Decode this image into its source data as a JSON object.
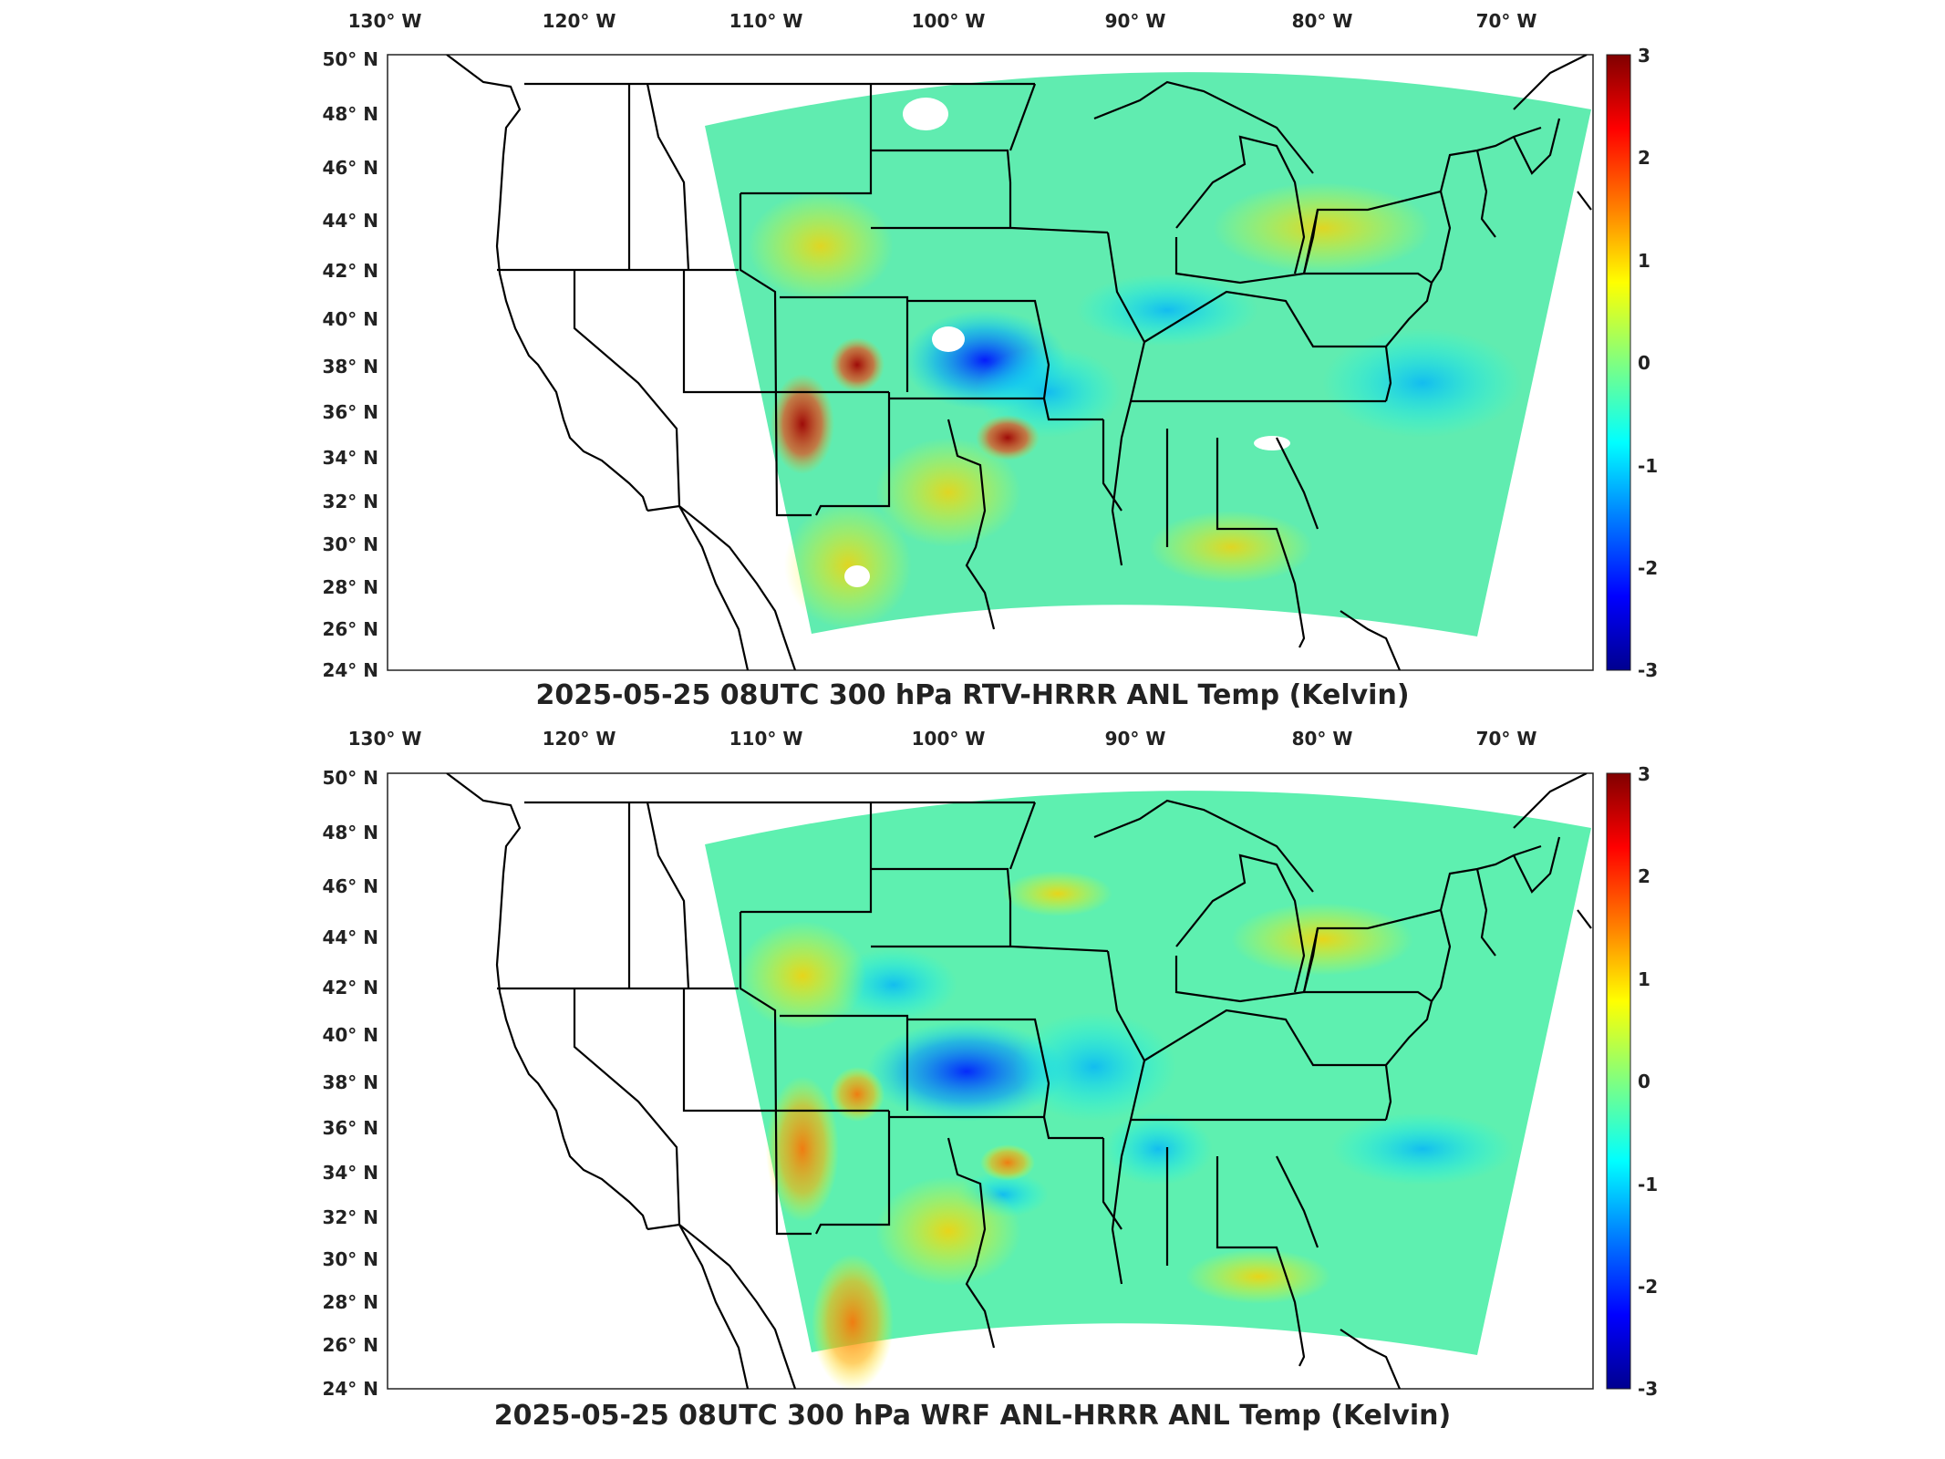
{
  "figure": {
    "panels": [
      {
        "id": "top",
        "title": "2025-05-25 08UTC 300 hPa RTV-HRRR ANL Temp (Kelvin)",
        "lon_labels": [
          "130° W",
          "120° W",
          "110° W",
          "100° W",
          "90° W",
          "80° W",
          "70° W"
        ],
        "lat_labels": [
          "50° N",
          "48° N",
          "46° N",
          "44° N",
          "42° N",
          "40° N",
          "38° N",
          "36° N",
          "34° N",
          "32° N",
          "30° N",
          "28° N",
          "26° N",
          "24° N"
        ],
        "colorbar_ticks": [
          "3",
          "2",
          "1",
          "0",
          "-1",
          "-2",
          "-3"
        ]
      },
      {
        "id": "bottom",
        "title": "2025-05-25 08UTC 300 hPa WRF ANL-HRRR ANL Temp (Kelvin)",
        "lon_labels": [
          "130° W",
          "120° W",
          "110° W",
          "100° W",
          "90° W",
          "80° W",
          "70° W"
        ],
        "lat_labels": [
          "50° N",
          "48° N",
          "46° N",
          "44° N",
          "42° N",
          "40° N",
          "38° N",
          "36° N",
          "34° N",
          "32° N",
          "30° N",
          "28° N",
          "26° N",
          "24° N"
        ],
        "colorbar_ticks": [
          "3",
          "2",
          "1",
          "0",
          "-1",
          "-2",
          "-3"
        ]
      }
    ],
    "colormap": [
      "#00008f",
      "#0000ff",
      "#0080ff",
      "#00ffff",
      "#80ff80",
      "#ffff00",
      "#ff8000",
      "#ff0000",
      "#800000"
    ],
    "field_base_color": "#5ff0a8"
  }
}
